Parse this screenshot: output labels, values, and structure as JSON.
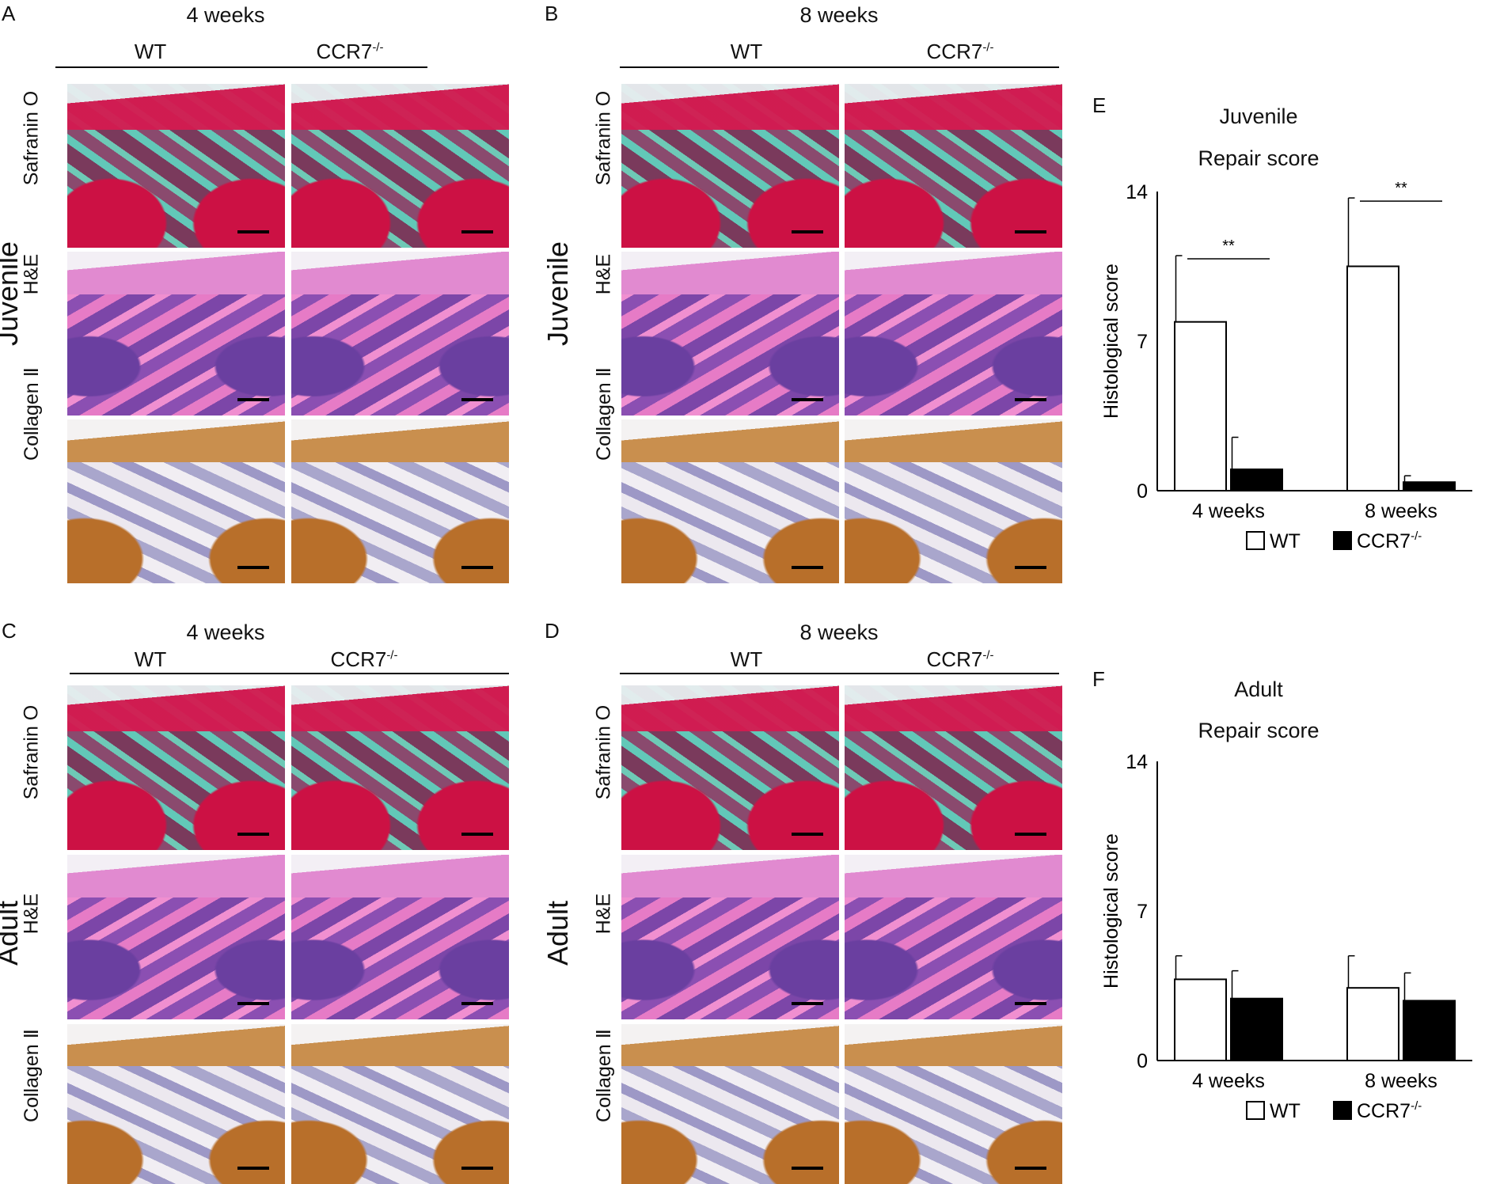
{
  "panels": {
    "A": {
      "letter": "A",
      "weeks": "4 weeks",
      "wt": "WT",
      "ko": "CCR7",
      "ko_sup": "-/-",
      "side": "Juvenile"
    },
    "B": {
      "letter": "B",
      "weeks": "8 weeks",
      "wt": "WT",
      "ko": "CCR7",
      "ko_sup": "-/-",
      "side": "Juvenile"
    },
    "C": {
      "letter": "C",
      "weeks": "4 weeks",
      "wt": "WT",
      "ko": "CCR7",
      "ko_sup": "-/-",
      "side": "Adult"
    },
    "D": {
      "letter": "D",
      "weeks": "8 weeks",
      "wt": "WT",
      "ko": "CCR7",
      "ko_sup": "-/-",
      "side": "Adult"
    }
  },
  "stains": {
    "safranin": "Safranin O",
    "he": "H&E",
    "collagen": "Collagen Ⅱ"
  },
  "chart_data": [
    {
      "panel": "E",
      "type": "bar",
      "title": "Juvenile",
      "subtitle": "Repair score",
      "ylabel": "Histological score",
      "ylim": [
        0,
        14
      ],
      "yticks": [
        "0",
        "7",
        "14"
      ],
      "categories": [
        "4 weeks",
        "8 weeks"
      ],
      "series": [
        {
          "name": "WT",
          "color": "#ffffff",
          "values": [
            7.9,
            10.5
          ],
          "errors": [
            3.1,
            3.2
          ]
        },
        {
          "name": "CCR7-/-",
          "color": "#000000",
          "values": [
            1.0,
            0.4
          ],
          "errors": [
            1.5,
            0.3
          ]
        }
      ],
      "significance": [
        "**",
        "**"
      ],
      "legend": {
        "wt": "WT",
        "ko": "CCR7",
        "ko_sup": "-/-"
      }
    },
    {
      "panel": "F",
      "type": "bar",
      "title": "Adult",
      "subtitle": "Repair score",
      "ylabel": "Histological score",
      "ylim": [
        0,
        14
      ],
      "yticks": [
        "0",
        "7",
        "14"
      ],
      "categories": [
        "4 weeks",
        "8 weeks"
      ],
      "series": [
        {
          "name": "WT",
          "color": "#ffffff",
          "values": [
            3.8,
            3.4
          ],
          "errors": [
            1.1,
            1.5
          ]
        },
        {
          "name": "CCR7-/-",
          "color": "#000000",
          "values": [
            2.9,
            2.8
          ],
          "errors": [
            1.3,
            1.3
          ]
        }
      ],
      "significance": [
        "",
        ""
      ],
      "legend": {
        "wt": "WT",
        "ko": "CCR7",
        "ko_sup": "-/-"
      }
    }
  ]
}
